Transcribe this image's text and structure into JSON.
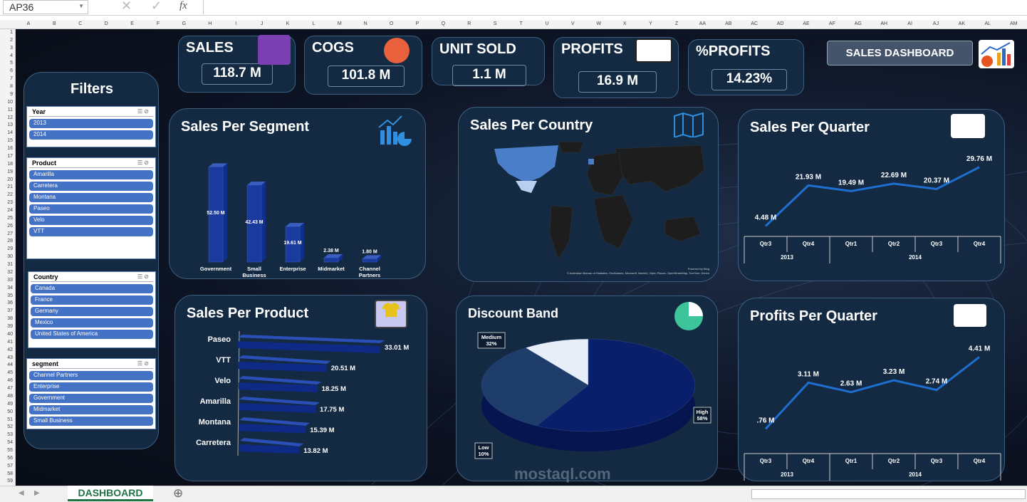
{
  "formula_bar": {
    "name_box": "AP36",
    "cancel": "✕",
    "enter": "✓",
    "fx": "fx"
  },
  "columns": [
    "A",
    "B",
    "C",
    "D",
    "E",
    "F",
    "G",
    "H",
    "I",
    "J",
    "K",
    "L",
    "M",
    "N",
    "O",
    "P",
    "Q",
    "R",
    "S",
    "T",
    "U",
    "V",
    "W",
    "X",
    "Y",
    "Z",
    "AA",
    "AB",
    "AC",
    "AD",
    "AE",
    "AF",
    "AG",
    "AH",
    "AI",
    "AJ",
    "AK",
    "AL",
    "AM"
  ],
  "kpis": [
    {
      "label": "SALES",
      "value": "118.7 M"
    },
    {
      "label": "COGS",
      "value": "101.8 M"
    },
    {
      "label": "UNIT SOLD",
      "value": "1.1 M"
    },
    {
      "label": "PROFITS",
      "value": "16.9 M"
    },
    {
      "label": "%PROFITS",
      "value": "14.23%"
    }
  ],
  "header_button": "SALES DASHBOARD",
  "filters": {
    "title": "Filters",
    "slicers": [
      {
        "title": "Year",
        "items": [
          "2013",
          "2014"
        ]
      },
      {
        "title": "Product",
        "items": [
          "Amarilla",
          "Carretera",
          "Montana",
          "Paseo",
          "Velo",
          "VTT"
        ]
      },
      {
        "title": "Country",
        "items": [
          "Canada",
          "France",
          "Germany",
          "Mexico",
          "United States of America"
        ]
      },
      {
        "title": "segment",
        "items": [
          "Channel Partners",
          "Enterprise",
          "Government",
          "Midmarket",
          "Small Business"
        ]
      }
    ]
  },
  "map": {
    "title": "Sales Per Country",
    "powered": "Powered by Bing",
    "credits": "© Australian Bureau of Statistics, GeoNames, Microsoft, Navinfo, Open Places, OpenStreetMap, TomTom, Zenrin"
  },
  "chart_data": [
    {
      "type": "bar",
      "title": "Sales Per Segment",
      "categories": [
        "Government",
        "Small Business",
        "Enterprise",
        "Midmarket",
        "Channel Partners"
      ],
      "values": [
        52.5,
        42.43,
        19.61,
        2.38,
        1.8
      ],
      "labels": [
        "52.50 M",
        "42.43 M",
        "19.61 M",
        "2.38 M",
        "1.80 M"
      ]
    },
    {
      "type": "line",
      "title": "Sales Per Quarter",
      "categories": [
        "Qtr3",
        "Qtr4",
        "Qtr1",
        "Qtr2",
        "Qtr3",
        "Qtr4"
      ],
      "years": [
        {
          "label": "2013",
          "span": 2
        },
        {
          "label": "2014",
          "span": 4
        }
      ],
      "values": [
        4.48,
        21.93,
        19.49,
        22.69,
        20.37,
        29.76
      ],
      "labels": [
        "4.48 M",
        "21.93 M",
        "19.49 M",
        "22.69 M",
        "20.37 M",
        "29.76 M"
      ]
    },
    {
      "type": "bar",
      "orientation": "horizontal",
      "title": "Sales Per Product",
      "categories": [
        "Paseo",
        "VTT",
        "Velo",
        "Amarilla",
        "Montana",
        "Carretera"
      ],
      "values": [
        33.01,
        20.51,
        18.25,
        17.75,
        15.39,
        13.82
      ],
      "labels": [
        "33.01 M",
        "20.51 M",
        "18.25 M",
        "17.75 M",
        "15.39 M",
        "13.82 M"
      ]
    },
    {
      "type": "pie",
      "title": "Discount Band",
      "categories": [
        "High",
        "Medium",
        "Low"
      ],
      "values": [
        58,
        32,
        10
      ],
      "labels": [
        "58%",
        "32%",
        "10%"
      ],
      "colors": [
        "#0a1f6b",
        "#1e3d6b",
        "#e8eef8"
      ]
    },
    {
      "type": "line",
      "title": "Profits Per Quarter",
      "categories": [
        "Qtr3",
        "Qtr4",
        "Qtr1",
        "Qtr2",
        "Qtr3",
        "Qtr4"
      ],
      "years": [
        {
          "label": "2013",
          "span": 2
        },
        {
          "label": "2014",
          "span": 4
        }
      ],
      "values": [
        0.76,
        3.11,
        2.63,
        3.23,
        2.74,
        4.41
      ],
      "labels": [
        ".76 M",
        "3.11 M",
        "2.63 M",
        "3.23 M",
        "2.74 M",
        "4.41 M"
      ]
    }
  ],
  "sheet_tab": "DASHBOARD",
  "watermark": "mostaql.com",
  "colors": {
    "panel": "#132a42",
    "line": "#1f6fd1",
    "slicer_item": "#4472c4",
    "tab": "#217346"
  }
}
